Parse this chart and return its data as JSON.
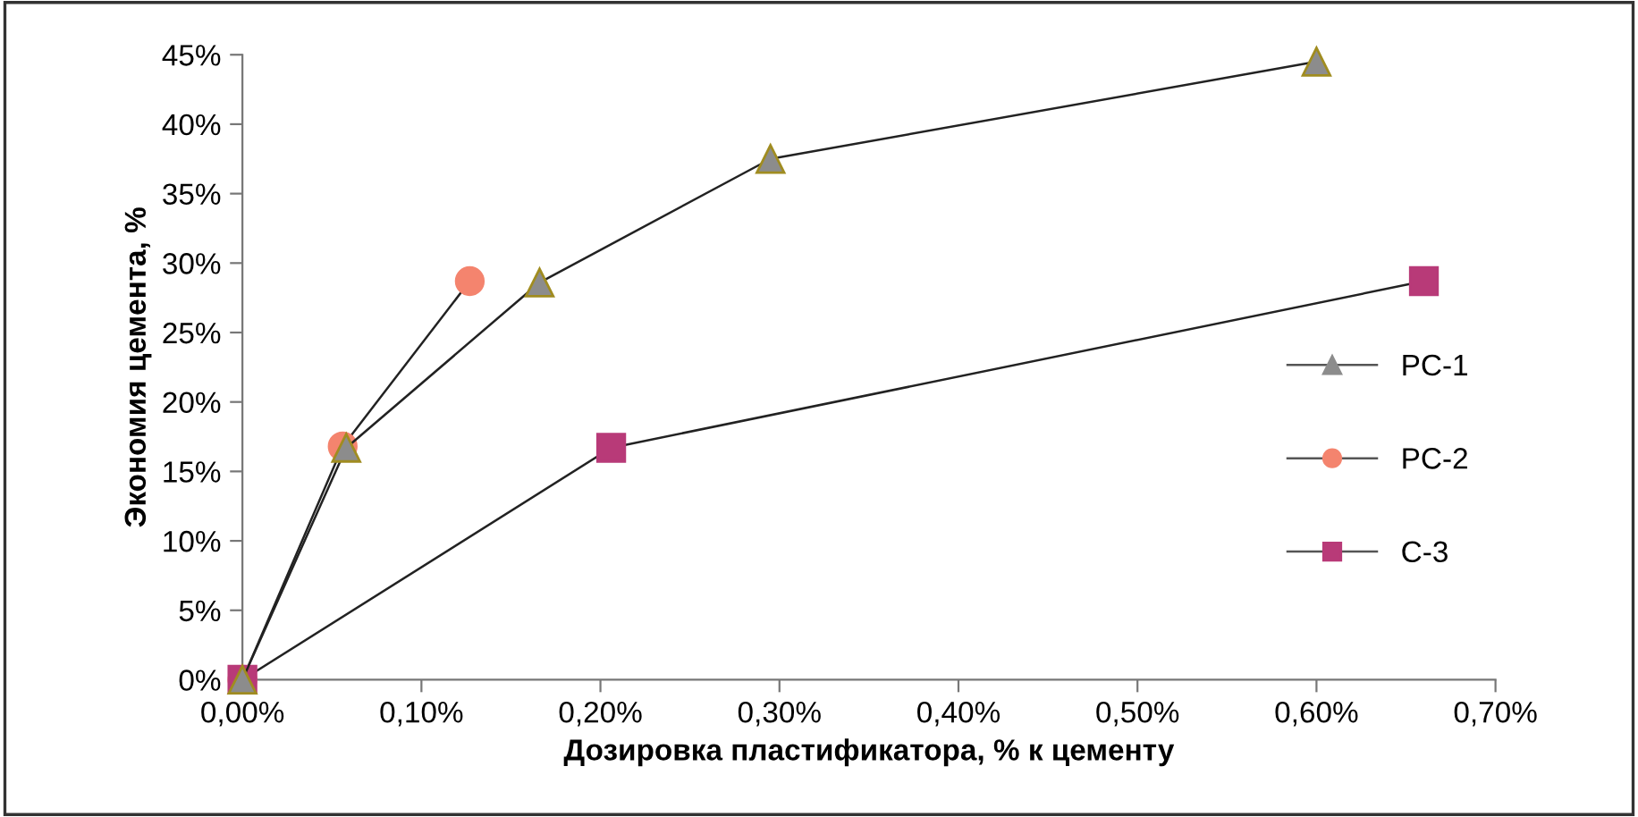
{
  "chart_data": {
    "type": "line",
    "xlabel": "Дозировка пластификатора, % к цементу",
    "ylabel": "Экономия цемента, %",
    "series": [
      {
        "name": "PC-1",
        "color": "#8c8c8c",
        "marker": "triangle",
        "x": [
          0,
          0.058,
          0.166,
          0.295,
          0.6
        ],
        "values": [
          0,
          16.7,
          28.6,
          37.5,
          44.5
        ]
      },
      {
        "name": "PC-2",
        "color": "#f4846e",
        "marker": "circle",
        "x": [
          0,
          0.056,
          0.127
        ],
        "values": [
          0,
          16.8,
          28.7
        ]
      },
      {
        "name": "C-3",
        "color": "#b83a78",
        "marker": "square",
        "x": [
          0,
          0.206,
          0.66
        ],
        "values": [
          0,
          16.7,
          28.7
        ]
      }
    ],
    "xlim": [
      0,
      0.7
    ],
    "xticks": [
      {
        "value": 0,
        "label": "0,00%"
      },
      {
        "value": 0.1,
        "label": "0,10%"
      },
      {
        "value": 0.2,
        "label": "0,20%"
      },
      {
        "value": 0.3,
        "label": "0,30%"
      },
      {
        "value": 0.4,
        "label": "0,40%"
      },
      {
        "value": 0.5,
        "label": "0,50%"
      },
      {
        "value": 0.6,
        "label": "0,60%"
      },
      {
        "value": 0.7,
        "label": "0,70%"
      }
    ],
    "ylim": [
      0,
      45
    ],
    "yticks": [
      {
        "value": 0,
        "label": "0%"
      },
      {
        "value": 5,
        "label": "5%"
      },
      {
        "value": 10,
        "label": "10%"
      },
      {
        "value": 15,
        "label": "15%"
      },
      {
        "value": 20,
        "label": "20%"
      },
      {
        "value": 25,
        "label": "25%"
      },
      {
        "value": 30,
        "label": "30%"
      },
      {
        "value": 35,
        "label": "35%"
      },
      {
        "value": 40,
        "label": "40%"
      },
      {
        "value": 45,
        "label": "45%"
      }
    ],
    "grid": false,
    "legend": "right"
  }
}
